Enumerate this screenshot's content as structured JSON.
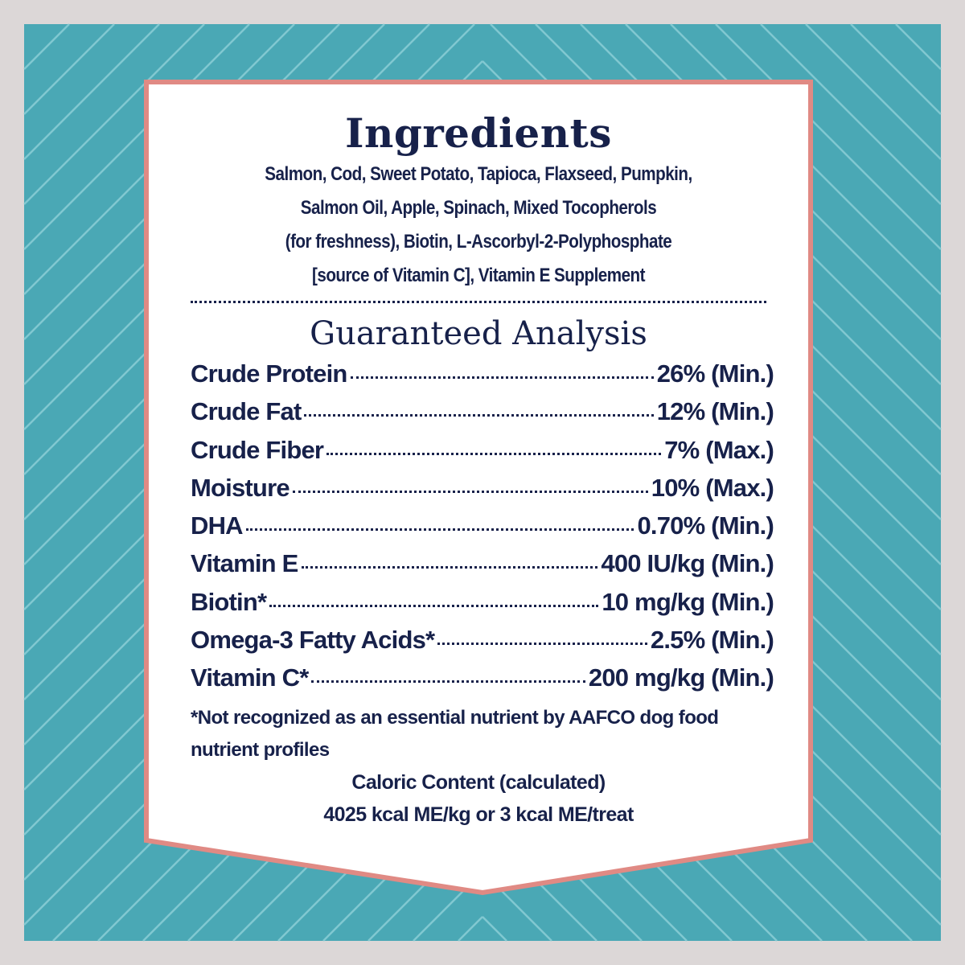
{
  "colors": {
    "background": "#dcd7d7",
    "panel": "#4aa8b5",
    "pattern_line": "#8fd0d8",
    "label_border": "#e08a84",
    "label_fill": "#ffffff",
    "text": "#17214a"
  },
  "ingredients": {
    "title": "Ingredients",
    "lines": [
      "Salmon, Cod, Sweet Potato, Tapioca, Flaxseed, Pumpkin,",
      "Salmon Oil, Apple, Spinach, Mixed Tocopherols",
      "(for freshness), Biotin, L-Ascorbyl-2-Polyphosphate",
      "[source of Vitamin C], Vitamin E Supplement"
    ]
  },
  "analysis": {
    "title": "Guaranteed Analysis",
    "rows": [
      {
        "label": "Crude Protein",
        "value": "26% (Min.)"
      },
      {
        "label": "Crude Fat",
        "value": "12% (Min.)"
      },
      {
        "label": "Crude Fiber",
        "value": "7% (Max.)"
      },
      {
        "label": "Moisture",
        "value": "10% (Max.)"
      },
      {
        "label": "DHA",
        "value": "0.70% (Min.)"
      },
      {
        "label": "Vitamin E",
        "value": "400 IU/kg (Min.)"
      },
      {
        "label": "Biotin*",
        "value": "10 mg/kg (Min.)"
      },
      {
        "label": "Omega-3 Fatty Acids*",
        "value": "2.5% (Min.)"
      },
      {
        "label": "Vitamin C*",
        "value": "200 mg/kg (Min.)"
      }
    ],
    "footnote_lines": [
      "*Not recognized as an essential nutrient by AAFCO dog food",
      "nutrient profiles"
    ],
    "caloric_lines": [
      "Caloric Content (calculated)",
      "4025 kcal ME/kg or 3 kcal ME/treat"
    ]
  }
}
